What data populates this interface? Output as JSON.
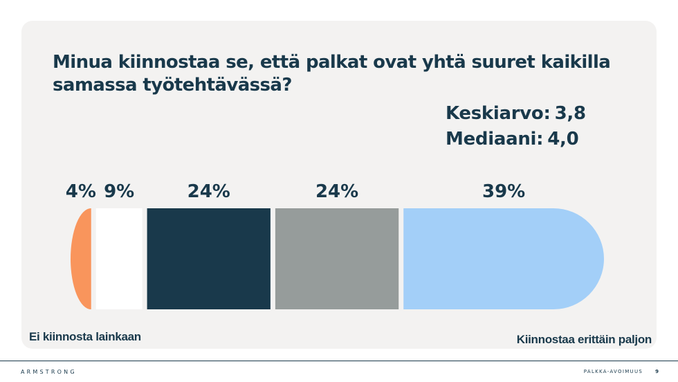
{
  "slide": {
    "question": "Minua kiinnostaa se, että palkat ovat yhtä suuret kaikilla samassa työtehtävässä?",
    "stats": [
      {
        "label": "Keskiarvo:",
        "value": "3,8"
      },
      {
        "label": "Mediaani:",
        "value": "4,0"
      }
    ],
    "scale_low_label": "Ei kiinnosta lainkaan",
    "scale_high_label": "Kiinnostaa erittäin paljon"
  },
  "footer": {
    "brand": "ARMSTRONG",
    "section": "PALKKA-AVOIMUUS",
    "page": "9"
  },
  "chart_data": {
    "type": "bar",
    "orientation": "horizontal-stacked",
    "categories": [
      "1",
      "2",
      "3",
      "4",
      "5"
    ],
    "values": [
      4,
      9,
      24,
      24,
      39
    ],
    "data_labels": [
      "4%",
      "9%",
      "24%",
      "24%",
      "39%"
    ],
    "colors": [
      "#f9955c",
      "#ffffff",
      "#19394b",
      "#969c9b",
      "#a3cff8"
    ],
    "unit": "%",
    "title": "Minua kiinnostaa se, että palkat ovat yhtä suuret kaikilla samassa työtehtävässä?",
    "grid": false,
    "legend": "none"
  }
}
